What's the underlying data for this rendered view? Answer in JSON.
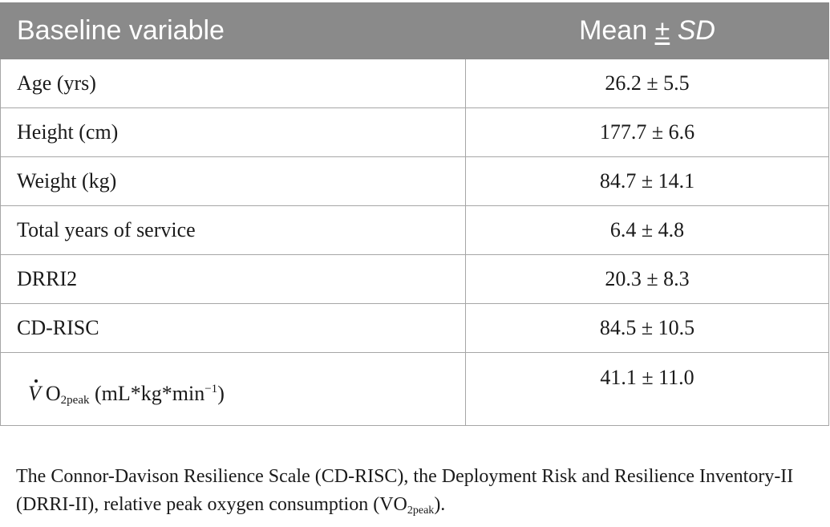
{
  "table": {
    "header": {
      "variable": "Baseline variable",
      "mean_prefix": "Mean ",
      "pm": "±",
      "sd": "SD"
    },
    "rows": [
      {
        "variable": "Age (yrs)",
        "value": "26.2 ± 5.5"
      },
      {
        "variable": "Height (cm)",
        "value": "177.7 ± 6.6"
      },
      {
        "variable": "Weight (kg)",
        "value": "84.7 ± 14.1"
      },
      {
        "variable": "Total years of service",
        "value": "6.4 ± 4.8"
      },
      {
        "variable": "DRRI2",
        "value": "20.3 ± 8.3"
      },
      {
        "variable": "CD-RISC",
        "value": "84.5 ± 10.5"
      }
    ],
    "vo2_row": {
      "v": "V",
      "o": "O",
      "sub": "2peak",
      "unit_prefix": " (mL*kg*min",
      "unit_sup": "−1",
      "unit_suffix": ")",
      "value": "41.1 ± 11.0"
    }
  },
  "footnote": {
    "text_main": "The Connor-Davison Resilience Scale (CD-RISC), the Deployment Risk and Resilience Inventory-II (DRRI-II), relative peak oxygen consumption (VO",
    "sub": "2peak",
    "end": ")."
  }
}
